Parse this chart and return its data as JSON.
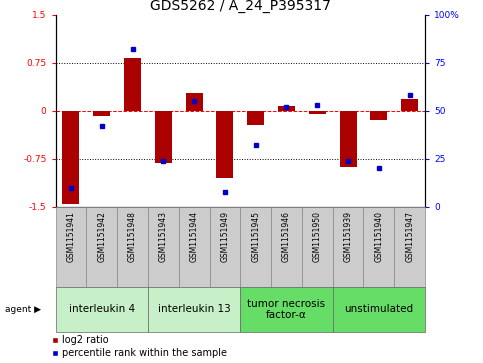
{
  "title": "GDS5262 / A_24_P395317",
  "samples": [
    "GSM1151941",
    "GSM1151942",
    "GSM1151948",
    "GSM1151943",
    "GSM1151944",
    "GSM1151949",
    "GSM1151945",
    "GSM1151946",
    "GSM1151950",
    "GSM1151939",
    "GSM1151940",
    "GSM1151947"
  ],
  "log2_ratio": [
    -1.45,
    -0.08,
    0.82,
    -0.82,
    0.28,
    -1.05,
    -0.22,
    0.08,
    -0.05,
    -0.88,
    -0.15,
    0.18
  ],
  "percentile": [
    10,
    42,
    82,
    24,
    55,
    8,
    32,
    52,
    53,
    24,
    20,
    58
  ],
  "agents": [
    {
      "label": "interleukin 4",
      "start": 0,
      "end": 3,
      "color": "#c8f0c8"
    },
    {
      "label": "interleukin 13",
      "start": 3,
      "end": 6,
      "color": "#c8f0c8"
    },
    {
      "label": "tumor necrosis\nfactor-α",
      "start": 6,
      "end": 9,
      "color": "#66dd66"
    },
    {
      "label": "unstimulated",
      "start": 9,
      "end": 12,
      "color": "#66dd66"
    }
  ],
  "bar_color": "#aa0000",
  "dot_color": "#0000cc",
  "ylim": [
    -1.5,
    1.5
  ],
  "yticks_left": [
    -1.5,
    -0.75,
    0,
    0.75,
    1.5
  ],
  "yticks_right": [
    0,
    25,
    50,
    75,
    100
  ],
  "background_color": "#ffffff",
  "title_fontsize": 10,
  "tick_fontsize": 6.5,
  "sample_fontsize": 5.5,
  "agent_fontsize": 7.5,
  "legend_fontsize": 7
}
